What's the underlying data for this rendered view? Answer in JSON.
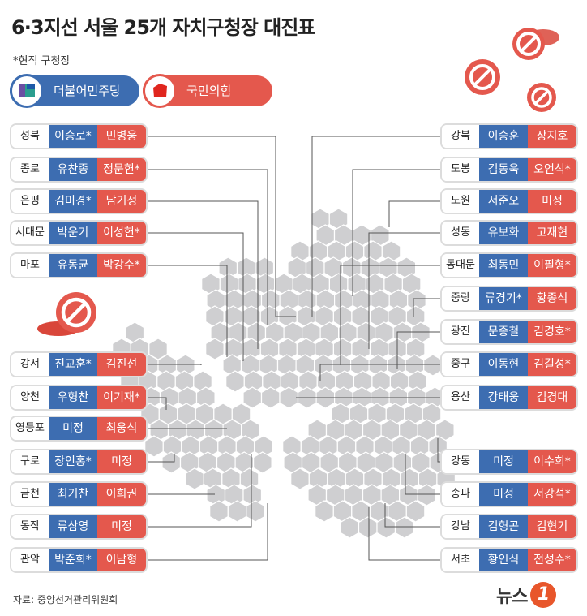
{
  "title": "6·3지선 서울 25개 자치구청장 대진표",
  "note": "*현직 구청장",
  "legend": {
    "dem": "더불어민주당",
    "ppp": "국민의힘"
  },
  "colors": {
    "dem": "#3d6db1",
    "ppp": "#e4584d",
    "map": "#cfcfd1",
    "leader": "#555555"
  },
  "left_rows": [
    {
      "district": "성북",
      "dem": "이승로*",
      "ppp": "민병웅"
    },
    {
      "district": "종로",
      "dem": "유찬종",
      "ppp": "정문헌*"
    },
    {
      "district": "은평",
      "dem": "김미경*",
      "ppp": "남기정"
    },
    {
      "district": "서대문",
      "dem": "박운기",
      "ppp": "이성헌*"
    },
    {
      "district": "마포",
      "dem": "유동균",
      "ppp": "박강수*"
    },
    {
      "district": "강서",
      "dem": "진교훈*",
      "ppp": "김진선"
    },
    {
      "district": "양천",
      "dem": "우형찬",
      "ppp": "이기재*"
    },
    {
      "district": "영등포",
      "dem": "미정",
      "ppp": "최웅식"
    },
    {
      "district": "구로",
      "dem": "장인홍*",
      "ppp": "미정"
    },
    {
      "district": "금천",
      "dem": "최기찬",
      "ppp": "이희권"
    },
    {
      "district": "동작",
      "dem": "류삼영",
      "ppp": "미정"
    },
    {
      "district": "관악",
      "dem": "박준희*",
      "ppp": "이남형"
    }
  ],
  "right_rows": [
    {
      "district": "강북",
      "dem": "이승훈",
      "ppp": "장지호"
    },
    {
      "district": "도봉",
      "dem": "김동욱",
      "ppp": "오언석*"
    },
    {
      "district": "노원",
      "dem": "서준오",
      "ppp": "미정"
    },
    {
      "district": "성동",
      "dem": "유보화",
      "ppp": "고재현"
    },
    {
      "district": "동대문",
      "dem": "최동민",
      "ppp": "이필형*"
    },
    {
      "district": "중랑",
      "dem": "류경기*",
      "ppp": "황종석"
    },
    {
      "district": "광진",
      "dem": "문종철",
      "ppp": "김경호*"
    },
    {
      "district": "중구",
      "dem": "이동현",
      "ppp": "김길성*"
    },
    {
      "district": "용산",
      "dem": "강태웅",
      "ppp": "김경대"
    },
    {
      "district": "강동",
      "dem": "미정",
      "ppp": "이수희*"
    },
    {
      "district": "송파",
      "dem": "미정",
      "ppp": "서강석*"
    },
    {
      "district": "강남",
      "dem": "김형곤",
      "ppp": "김현기"
    },
    {
      "district": "서초",
      "dem": "황인식",
      "ppp": "전성수*"
    }
  ],
  "source": "자료: 중앙선거관리위원회",
  "logo": {
    "text": "뉴스",
    "mark": "1"
  }
}
